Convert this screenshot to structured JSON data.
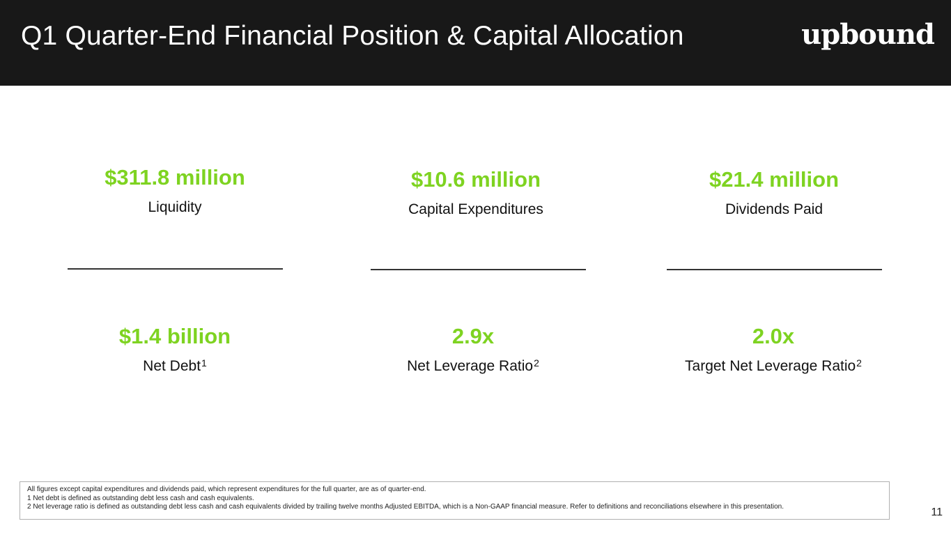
{
  "header": {
    "title": "Q1 Quarter-End Financial Position & Capital Allocation",
    "logo": "upbound"
  },
  "accent_color": "#7ed321",
  "metrics": [
    {
      "value": "$311.8 million",
      "label": "Liquidity",
      "sup": ""
    },
    {
      "value": "$10.6 million",
      "label": "Capital Expenditures",
      "sup": ""
    },
    {
      "value": "$21.4 million",
      "label": "Dividends Paid",
      "sup": ""
    },
    {
      "value": "$1.4 billion",
      "label": "Net Debt",
      "sup": "1"
    },
    {
      "value": "2.9x",
      "label": "Net Leverage Ratio",
      "sup": "2"
    },
    {
      "value": "2.0x",
      "label": "Target Net Leverage Ratio",
      "sup": "2"
    }
  ],
  "footnotes": [
    "All figures except capital expenditures and dividends paid, which represent expenditures for the full quarter, are as of quarter-end.",
    "1 Net debt is defined as outstanding debt less cash and cash equivalents.",
    "2 Net leverage ratio is defined as outstanding debt less cash and cash equivalents divided by trailing twelve months Adjusted EBITDA, which is a Non-GAAP financial measure. Refer to definitions and reconciliations elsewhere in this presentation."
  ],
  "page_number": "11"
}
